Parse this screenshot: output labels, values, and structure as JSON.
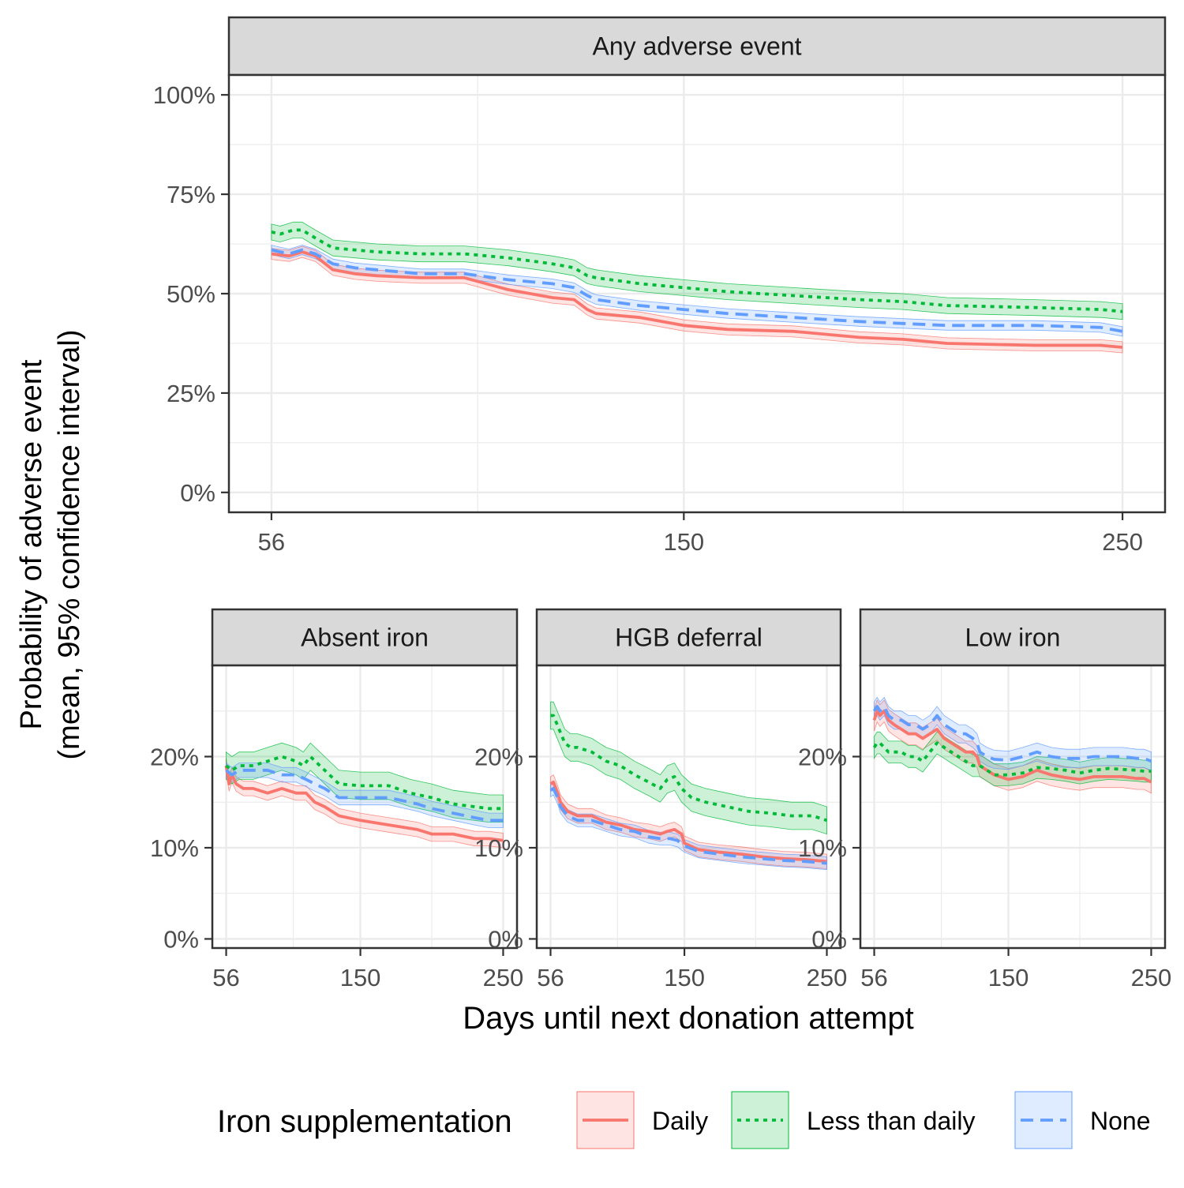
{
  "chart_data": {
    "type": "line",
    "ylabel": "Probability of adverse event",
    "ylabel_line2": "(mean, 95% confidence interval)",
    "xlabel": "Days until next donation attempt",
    "legend": {
      "title": "Iron supplementation",
      "position": "bottom",
      "entries": [
        {
          "name": "Daily",
          "color": "#F8766D",
          "linetype": "solid"
        },
        {
          "name": "Less than daily",
          "color": "#00BA38",
          "linetype": "dotted"
        },
        {
          "name": "None",
          "color": "#619CFF",
          "linetype": "dashed"
        }
      ]
    },
    "grid": true,
    "x_ticks": [
      {
        "value": 56,
        "label": "56"
      },
      {
        "value": 150,
        "label": "150"
      },
      {
        "value": 250,
        "label": "250"
      }
    ],
    "panels": [
      {
        "title": "Any adverse event",
        "ylim": [
          -0.05,
          1.05
        ],
        "xlim": [
          46.3,
          259.7
        ],
        "y_ticks": [
          {
            "value": 0,
            "label": "0%"
          },
          {
            "value": 0.25,
            "label": "25%"
          },
          {
            "value": 0.5,
            "label": "50%"
          },
          {
            "value": 0.75,
            "label": "75%"
          },
          {
            "value": 1.0,
            "label": "100%"
          }
        ],
        "series": [
          {
            "name": "Daily",
            "x": [
              56,
              60,
              63,
              66,
              70,
              75,
              80,
              90,
              100,
              110,
              120,
              125,
              128,
              130,
              140,
              150,
              160,
              175,
              190,
              200,
              210,
              230,
              245,
              250
            ],
            "mean": [
              0.6,
              0.595,
              0.605,
              0.595,
              0.56,
              0.55,
              0.545,
              0.54,
              0.54,
              0.51,
              0.49,
              0.485,
              0.46,
              0.45,
              0.44,
              0.42,
              0.41,
              0.405,
              0.39,
              0.385,
              0.375,
              0.37,
              0.37,
              0.365
            ],
            "ci": 0.014
          },
          {
            "name": "Less than daily",
            "x": [
              56,
              58,
              61,
              63,
              66,
              70,
              80,
              90,
              100,
              110,
              120,
              125,
              128,
              130,
              140,
              150,
              160,
              175,
              190,
              200,
              210,
              230,
              245,
              250
            ],
            "mean": [
              0.655,
              0.65,
              0.66,
              0.66,
              0.64,
              0.615,
              0.605,
              0.6,
              0.6,
              0.59,
              0.575,
              0.565,
              0.545,
              0.54,
              0.525,
              0.515,
              0.505,
              0.495,
              0.485,
              0.48,
              0.47,
              0.465,
              0.46,
              0.455
            ],
            "ci": 0.02
          },
          {
            "name": "None",
            "x": [
              56,
              60,
              63,
              66,
              70,
              75,
              80,
              90,
              100,
              110,
              120,
              125,
              128,
              130,
              140,
              150,
              160,
              175,
              190,
              200,
              210,
              230,
              245,
              250
            ],
            "mean": [
              0.61,
              0.6,
              0.61,
              0.6,
              0.575,
              0.565,
              0.56,
              0.55,
              0.55,
              0.535,
              0.525,
              0.515,
              0.495,
              0.485,
              0.47,
              0.46,
              0.45,
              0.44,
              0.43,
              0.425,
              0.42,
              0.42,
              0.415,
              0.405
            ],
            "ci": 0.012
          }
        ]
      },
      {
        "title": "Absent iron",
        "ylim": [
          -0.01,
          0.3
        ],
        "xlim": [
          46.3,
          259.7
        ],
        "y_ticks": [
          {
            "value": 0,
            "label": "0%"
          },
          {
            "value": 0.1,
            "label": "10%"
          },
          {
            "value": 0.2,
            "label": "20%"
          }
        ],
        "series": [
          {
            "name": "Daily",
            "x": [
              56,
              58,
              60,
              63,
              68,
              75,
              85,
              95,
              105,
              112,
              118,
              125,
              135,
              150,
              170,
              190,
              200,
              215,
              230,
              240,
              250
            ],
            "mean": [
              0.19,
              0.17,
              0.18,
              0.17,
              0.165,
              0.165,
              0.16,
              0.165,
              0.16,
              0.16,
              0.15,
              0.145,
              0.135,
              0.13,
              0.125,
              0.12,
              0.115,
              0.115,
              0.11,
              0.11,
              0.108
            ],
            "ci": 0.008
          },
          {
            "name": "Less than daily",
            "x": [
              56,
              60,
              65,
              75,
              85,
              95,
              105,
              110,
              115,
              125,
              135,
              150,
              170,
              185,
              200,
              215,
              230,
              240,
              250
            ],
            "mean": [
              0.19,
              0.185,
              0.19,
              0.19,
              0.195,
              0.2,
              0.195,
              0.19,
              0.2,
              0.185,
              0.17,
              0.168,
              0.168,
              0.16,
              0.155,
              0.148,
              0.145,
              0.143,
              0.143
            ],
            "ci": 0.015
          },
          {
            "name": "None",
            "x": [
              56,
              60,
              65,
              75,
              85,
              95,
              105,
              112,
              118,
              125,
              135,
              150,
              170,
              190,
              200,
              215,
              230,
              240,
              250
            ],
            "mean": [
              0.185,
              0.18,
              0.185,
              0.185,
              0.185,
              0.18,
              0.18,
              0.175,
              0.17,
              0.165,
              0.155,
              0.155,
              0.155,
              0.148,
              0.143,
              0.138,
              0.133,
              0.13,
              0.13
            ],
            "ci": 0.008
          }
        ]
      },
      {
        "title": "HGB deferral",
        "ylim": [
          -0.01,
          0.3
        ],
        "xlim": [
          46.3,
          259.7
        ],
        "y_ticks": [
          {
            "value": 0,
            "label": "0%"
          },
          {
            "value": 0.1,
            "label": "10%"
          },
          {
            "value": 0.2,
            "label": "20%"
          }
        ],
        "series": [
          {
            "name": "Daily",
            "x": [
              56,
              58,
              61,
              63,
              68,
              75,
              85,
              95,
              105,
              115,
              125,
              133,
              138,
              143,
              148,
              150,
              160,
              175,
              190,
              205,
              220,
              235,
              250
            ],
            "mean": [
              0.17,
              0.172,
              0.16,
              0.15,
              0.14,
              0.135,
              0.135,
              0.128,
              0.125,
              0.12,
              0.118,
              0.115,
              0.118,
              0.12,
              0.115,
              0.105,
              0.098,
              0.095,
              0.093,
              0.09,
              0.088,
              0.087,
              0.085
            ],
            "ci": 0.008
          },
          {
            "name": "Less than daily",
            "x": [
              56,
              58,
              62,
              66,
              70,
              75,
              85,
              95,
              105,
              115,
              125,
              133,
              138,
              143,
              148,
              155,
              165,
              180,
              195,
              210,
              225,
              240,
              250
            ],
            "mean": [
              0.245,
              0.245,
              0.23,
              0.215,
              0.21,
              0.21,
              0.205,
              0.195,
              0.19,
              0.18,
              0.172,
              0.165,
              0.175,
              0.178,
              0.165,
              0.155,
              0.15,
              0.145,
              0.14,
              0.138,
              0.135,
              0.135,
              0.13
            ],
            "ci": 0.015
          },
          {
            "name": "None",
            "x": [
              56,
              58,
              61,
              63,
              68,
              75,
              85,
              95,
              105,
              115,
              125,
              133,
              140,
              145,
              150,
              160,
              175,
              190,
              205,
              220,
              235,
              250
            ],
            "mean": [
              0.163,
              0.165,
              0.155,
              0.145,
              0.135,
              0.13,
              0.13,
              0.125,
              0.12,
              0.118,
              0.112,
              0.11,
              0.11,
              0.108,
              0.102,
              0.096,
              0.093,
              0.09,
              0.088,
              0.086,
              0.085,
              0.083
            ],
            "ci": 0.007
          }
        ]
      },
      {
        "title": "Low iron",
        "ylim": [
          -0.01,
          0.3
        ],
        "xlim": [
          46.3,
          259.7
        ],
        "y_ticks": [
          {
            "value": 0,
            "label": "0%"
          },
          {
            "value": 0.1,
            "label": "10%"
          },
          {
            "value": 0.2,
            "label": "20%"
          }
        ],
        "series": [
          {
            "name": "Daily",
            "x": [
              56,
              58,
              60,
              63,
              66,
              70,
              75,
              80,
              85,
              90,
              95,
              100,
              105,
              110,
              115,
              120,
              125,
              128,
              130,
              135,
              140,
              150,
              160,
              170,
              180,
              190,
              200,
              210,
              220,
              230,
              240,
              245,
              250
            ],
            "mean": [
              0.24,
              0.25,
              0.245,
              0.25,
              0.24,
              0.235,
              0.23,
              0.225,
              0.225,
              0.22,
              0.225,
              0.23,
              0.22,
              0.215,
              0.21,
              0.205,
              0.205,
              0.2,
              0.19,
              0.185,
              0.18,
              0.175,
              0.178,
              0.185,
              0.18,
              0.177,
              0.175,
              0.178,
              0.178,
              0.178,
              0.176,
              0.176,
              0.172
            ],
            "ci": 0.012
          },
          {
            "name": "Less than daily",
            "x": [
              56,
              58,
              60,
              63,
              66,
              70,
              75,
              80,
              85,
              90,
              95,
              100,
              105,
              110,
              115,
              120,
              125,
              128,
              130,
              135,
              140,
              150,
              160,
              170,
              180,
              190,
              200,
              210,
              220,
              230,
              240,
              245,
              250
            ],
            "mean": [
              0.21,
              0.215,
              0.215,
              0.21,
              0.205,
              0.205,
              0.205,
              0.2,
              0.2,
              0.195,
              0.205,
              0.215,
              0.21,
              0.205,
              0.2,
              0.195,
              0.19,
              0.19,
              0.19,
              0.185,
              0.18,
              0.18,
              0.182,
              0.188,
              0.187,
              0.185,
              0.182,
              0.185,
              0.187,
              0.186,
              0.185,
              0.184,
              0.184
            ],
            "ci": 0.012
          },
          {
            "name": "None",
            "x": [
              56,
              58,
              60,
              63,
              66,
              70,
              75,
              80,
              85,
              90,
              95,
              100,
              105,
              110,
              115,
              120,
              125,
              128,
              130,
              135,
              140,
              150,
              160,
              170,
              180,
              190,
              200,
              210,
              220,
              230,
              240,
              245,
              250
            ],
            "mean": [
              0.25,
              0.255,
              0.25,
              0.255,
              0.245,
              0.24,
              0.24,
              0.235,
              0.235,
              0.23,
              0.235,
              0.245,
              0.235,
              0.23,
              0.225,
              0.225,
              0.22,
              0.215,
              0.205,
              0.2,
              0.197,
              0.196,
              0.2,
              0.205,
              0.2,
              0.198,
              0.198,
              0.2,
              0.2,
              0.2,
              0.198,
              0.198,
              0.195
            ],
            "ci": 0.01
          }
        ]
      }
    ]
  }
}
